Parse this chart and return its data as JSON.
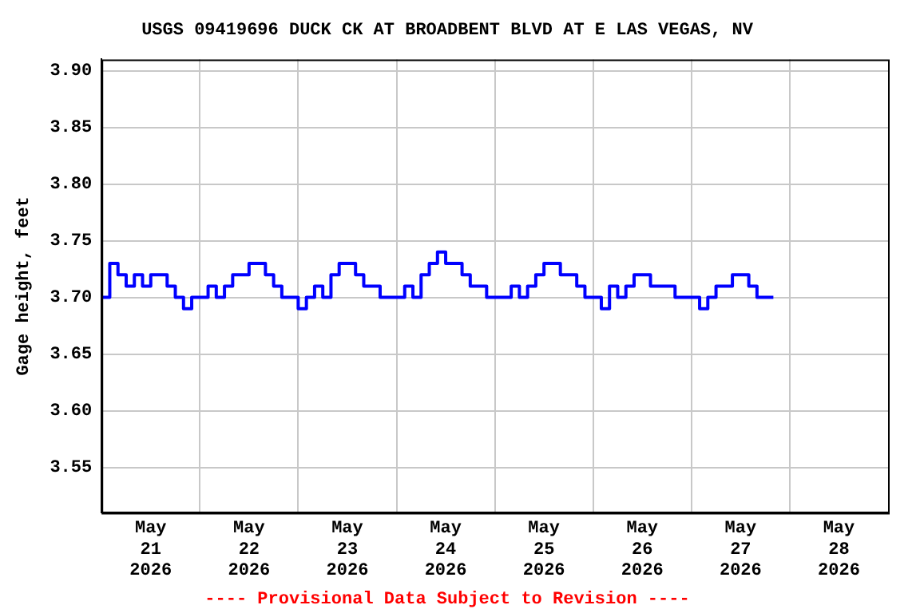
{
  "chart_data": {
    "type": "step",
    "title": "USGS 09419696 DUCK CK AT BROADBENT BLVD AT E LAS VEGAS, NV",
    "ylabel": "Gage height, feet",
    "annotations": [
      "---- Provisional Data Subject to Revision ----"
    ],
    "x": [
      "2026-05-21T00:00",
      "2026-05-21T02:00",
      "2026-05-21T04:00",
      "2026-05-21T06:00",
      "2026-05-21T08:00",
      "2026-05-21T10:00",
      "2026-05-21T12:00",
      "2026-05-21T14:00",
      "2026-05-21T16:00",
      "2026-05-21T18:00",
      "2026-05-21T20:00",
      "2026-05-21T22:00",
      "2026-05-22T00:00",
      "2026-05-22T02:00",
      "2026-05-22T04:00",
      "2026-05-22T06:00",
      "2026-05-22T08:00",
      "2026-05-22T10:00",
      "2026-05-22T12:00",
      "2026-05-22T14:00",
      "2026-05-22T16:00",
      "2026-05-22T18:00",
      "2026-05-22T20:00",
      "2026-05-22T22:00",
      "2026-05-23T00:00",
      "2026-05-23T02:00",
      "2026-05-23T04:00",
      "2026-05-23T06:00",
      "2026-05-23T08:00",
      "2026-05-23T10:00",
      "2026-05-23T12:00",
      "2026-05-23T14:00",
      "2026-05-23T16:00",
      "2026-05-23T18:00",
      "2026-05-23T20:00",
      "2026-05-23T22:00",
      "2026-05-24T00:00",
      "2026-05-24T02:00",
      "2026-05-24T04:00",
      "2026-05-24T06:00",
      "2026-05-24T08:00",
      "2026-05-24T10:00",
      "2026-05-24T12:00",
      "2026-05-24T14:00",
      "2026-05-24T16:00",
      "2026-05-24T18:00",
      "2026-05-24T20:00",
      "2026-05-24T22:00",
      "2026-05-25T00:00",
      "2026-05-25T02:00",
      "2026-05-25T04:00",
      "2026-05-25T06:00",
      "2026-05-25T08:00",
      "2026-05-25T10:00",
      "2026-05-25T12:00",
      "2026-05-25T14:00",
      "2026-05-25T16:00",
      "2026-05-25T18:00",
      "2026-05-25T20:00",
      "2026-05-25T22:00",
      "2026-05-26T00:00",
      "2026-05-26T02:00",
      "2026-05-26T04:00",
      "2026-05-26T06:00",
      "2026-05-26T08:00",
      "2026-05-26T10:00",
      "2026-05-26T12:00",
      "2026-05-26T14:00",
      "2026-05-26T16:00",
      "2026-05-26T18:00",
      "2026-05-26T20:00",
      "2026-05-26T22:00",
      "2026-05-27T00:00",
      "2026-05-27T02:00",
      "2026-05-27T04:00",
      "2026-05-27T06:00",
      "2026-05-27T08:00",
      "2026-05-27T10:00",
      "2026-05-27T12:00",
      "2026-05-27T14:00",
      "2026-05-27T16:00",
      "2026-05-27T18:00",
      "2026-05-27T20:00"
    ],
    "series": [
      {
        "color": "#0000ff",
        "values": [
          3.7,
          3.73,
          3.72,
          3.71,
          3.72,
          3.71,
          3.72,
          3.72,
          3.71,
          3.7,
          3.69,
          3.7,
          3.7,
          3.71,
          3.7,
          3.71,
          3.72,
          3.72,
          3.73,
          3.73,
          3.72,
          3.71,
          3.7,
          3.7,
          3.69,
          3.7,
          3.71,
          3.7,
          3.72,
          3.73,
          3.73,
          3.72,
          3.71,
          3.71,
          3.7,
          3.7,
          3.7,
          3.71,
          3.7,
          3.72,
          3.73,
          3.74,
          3.73,
          3.73,
          3.72,
          3.71,
          3.71,
          3.7,
          3.7,
          3.7,
          3.71,
          3.7,
          3.71,
          3.72,
          3.73,
          3.73,
          3.72,
          3.72,
          3.71,
          3.7,
          3.7,
          3.69,
          3.71,
          3.7,
          3.71,
          3.72,
          3.72,
          3.71,
          3.71,
          3.71,
          3.7,
          3.7,
          3.7,
          3.69,
          3.7,
          3.71,
          3.71,
          3.72,
          3.72,
          3.71,
          3.7,
          3.7,
          3.7
        ]
      }
    ],
    "xlim": [
      "2026-05-21T00:00",
      "2026-05-29T00:00"
    ],
    "xticks": [
      {
        "value": "2026-05-21T12:00",
        "label": "May\n21\n2026"
      },
      {
        "value": "2026-05-22T00:00",
        "label": null
      },
      {
        "value": "2026-05-22T12:00",
        "label": "May\n22\n2026"
      },
      {
        "value": "2026-05-23T00:00",
        "label": null
      },
      {
        "value": "2026-05-23T12:00",
        "label": "May\n23\n2026"
      },
      {
        "value": "2026-05-24T00:00",
        "label": null
      },
      {
        "value": "2026-05-24T12:00",
        "label": "May\n24\n2026"
      },
      {
        "value": "2026-05-25T00:00",
        "label": null
      },
      {
        "value": "2026-05-25T12:00",
        "label": "May\n25\n2026"
      },
      {
        "value": "2026-05-26T00:00",
        "label": null
      },
      {
        "value": "2026-05-26T12:00",
        "label": "May\n26\n2026"
      },
      {
        "value": "2026-05-27T00:00",
        "label": null
      },
      {
        "value": "2026-05-27T12:00",
        "label": "May\n27\n2026"
      },
      {
        "value": "2026-05-28T00:00",
        "label": null
      },
      {
        "value": "2026-05-28T12:00",
        "label": "May\n28\n2026"
      }
    ],
    "ylim": [
      3.51,
      3.91
    ],
    "yticks": [
      {
        "value": 3.55,
        "label": "3.55"
      },
      {
        "value": 3.6,
        "label": "3.60"
      },
      {
        "value": 3.65,
        "label": "3.65"
      },
      {
        "value": 3.7,
        "label": "3.70"
      },
      {
        "value": 3.75,
        "label": "3.75"
      },
      {
        "value": 3.8,
        "label": "3.80"
      },
      {
        "value": 3.85,
        "label": "3.85"
      },
      {
        "value": 3.9,
        "label": "3.90"
      }
    ],
    "grid": true,
    "legend": false,
    "marker": "none",
    "line_style": "solid"
  }
}
